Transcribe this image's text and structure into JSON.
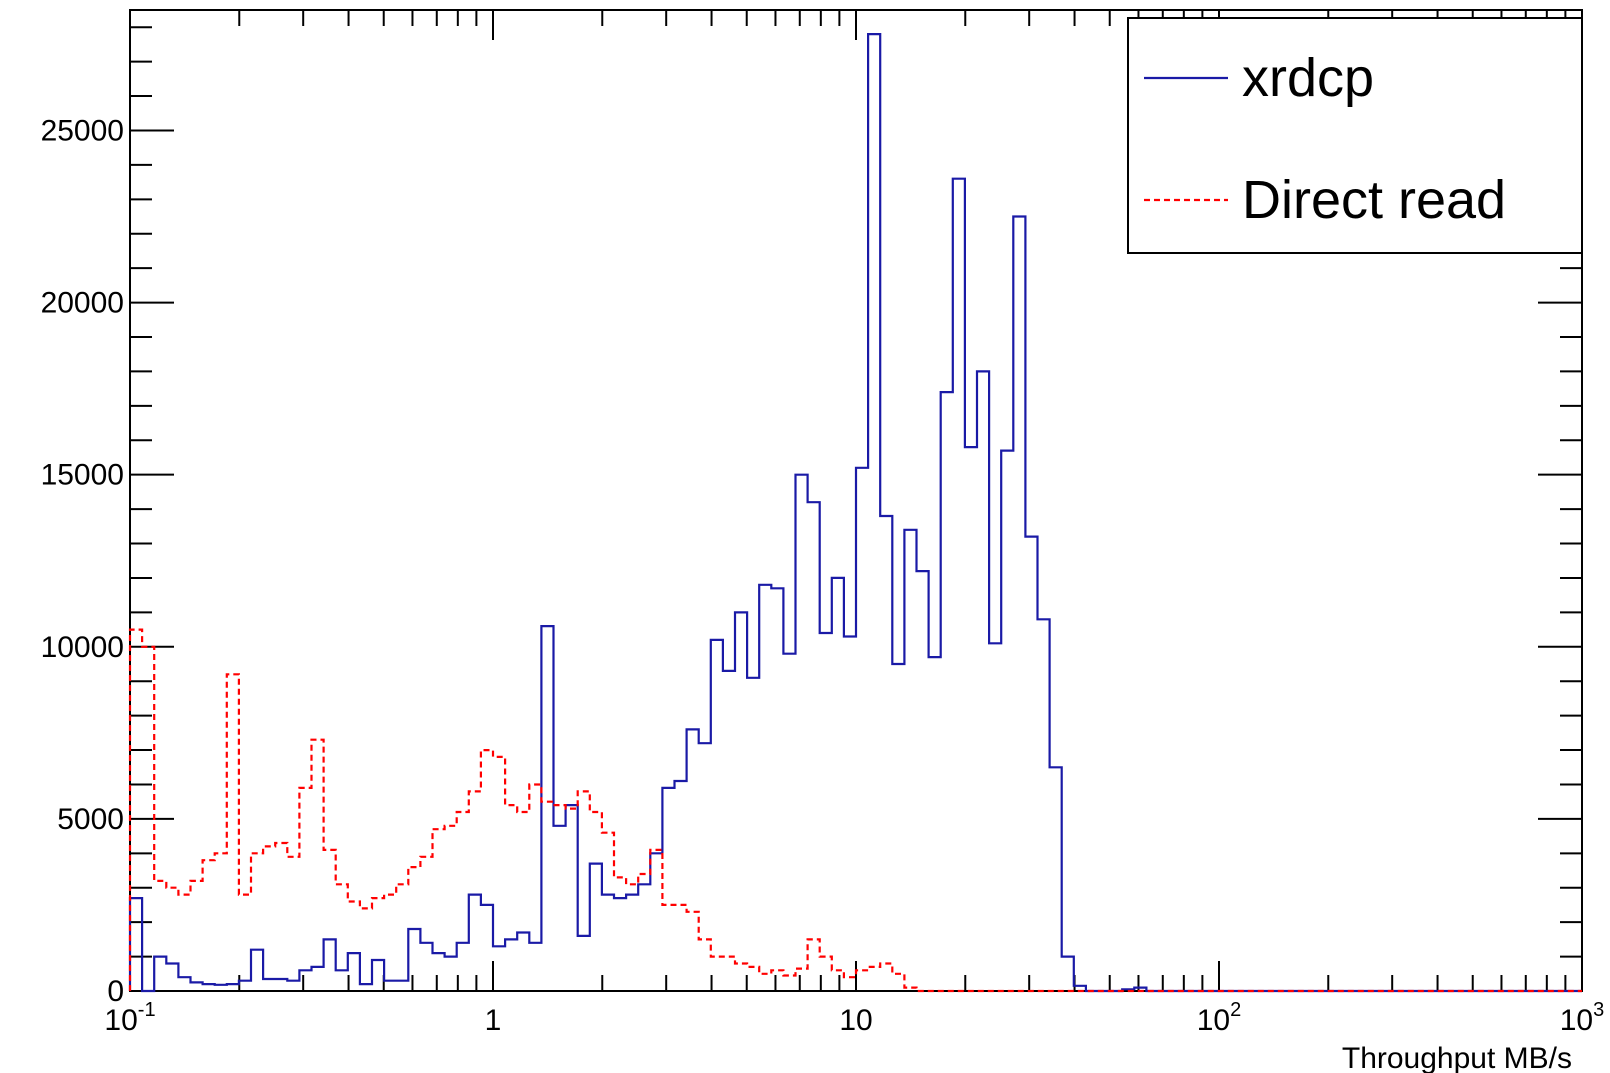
{
  "chart_data": {
    "type": "histogram",
    "title": "",
    "xlabel": "Throughput MB/s",
    "ylabel": "",
    "xscale": "log",
    "xlim": [
      0.1,
      1000
    ],
    "ylim": [
      0,
      28500
    ],
    "bins_per_decade": 30,
    "x_tick_labels": [
      {
        "value": 0.1,
        "base": "10",
        "exp": "-1"
      },
      {
        "value": 1,
        "base": "1",
        "exp": ""
      },
      {
        "value": 10,
        "base": "10",
        "exp": ""
      },
      {
        "value": 100,
        "base": "10",
        "exp": "2"
      },
      {
        "value": 1000,
        "base": "10",
        "exp": "3"
      }
    ],
    "y_ticks": [
      {
        "value": 0,
        "label": "0"
      },
      {
        "value": 5000,
        "label": "5000"
      },
      {
        "value": 10000,
        "label": "10000"
      },
      {
        "value": 15000,
        "label": "15000"
      },
      {
        "value": 20000,
        "label": "20000"
      },
      {
        "value": 25000,
        "label": "25000"
      }
    ],
    "legend_position": "top-right",
    "series": [
      {
        "name": "xrdcp",
        "color": "#1a1aa6",
        "style": "solid",
        "values": [
          2700,
          0,
          1000,
          800,
          400,
          250,
          200,
          180,
          200,
          300,
          1200,
          350,
          350,
          300,
          600,
          700,
          1500,
          600,
          1100,
          200,
          900,
          300,
          300,
          1800,
          1400,
          1100,
          1000,
          1400,
          2800,
          2500,
          1300,
          1500,
          1700,
          1400,
          10600,
          4800,
          5400,
          1600,
          3700,
          2800,
          2700,
          2800,
          3100,
          4000,
          5900,
          6100,
          7600,
          7200,
          10200,
          9300,
          11000,
          9100,
          11800,
          11700,
          9800,
          15000,
          14200,
          10400,
          12000,
          10300,
          15200,
          27800,
          13800,
          9500,
          13400,
          12200,
          9700,
          17400,
          23600,
          15800,
          18000,
          10100,
          15700,
          22500,
          13200,
          10800,
          6500,
          1000,
          150,
          0,
          0,
          0,
          50,
          100,
          0,
          0,
          0,
          0,
          0,
          0,
          0,
          0,
          0,
          0,
          0,
          0,
          0,
          0,
          0,
          0,
          0,
          0,
          0,
          0,
          0,
          0,
          0,
          0,
          0,
          0,
          0,
          0,
          0,
          0,
          0,
          0,
          0,
          0,
          0,
          0
        ]
      },
      {
        "name": "Direct read",
        "color": "#ff0000",
        "style": "dashed",
        "values": [
          10500,
          10000,
          3200,
          3000,
          2800,
          3200,
          3800,
          4000,
          9200,
          2800,
          4000,
          4200,
          4300,
          3900,
          5900,
          7300,
          4100,
          3100,
          2600,
          2400,
          2700,
          2800,
          3100,
          3600,
          3900,
          4700,
          4800,
          5200,
          5800,
          7000,
          6800,
          5400,
          5200,
          6000,
          5500,
          5400,
          5300,
          5800,
          5200,
          4600,
          3300,
          3100,
          3400,
          4100,
          2500,
          2500,
          2300,
          1500,
          1000,
          1000,
          800,
          700,
          500,
          600,
          450,
          650,
          1500,
          1000,
          600,
          400,
          600,
          700,
          800,
          500,
          100,
          0,
          0,
          0,
          0,
          0,
          0,
          0,
          0,
          0,
          0,
          0,
          0,
          0,
          0,
          0,
          0,
          0,
          0,
          0,
          0,
          0,
          0,
          0,
          0,
          0,
          0,
          0,
          0,
          0,
          0,
          0,
          0,
          0,
          0,
          0,
          0,
          0,
          0,
          0,
          0,
          0,
          0,
          0,
          0,
          0,
          0,
          0,
          0,
          0,
          0,
          0,
          0,
          0,
          0,
          0
        ]
      }
    ]
  }
}
